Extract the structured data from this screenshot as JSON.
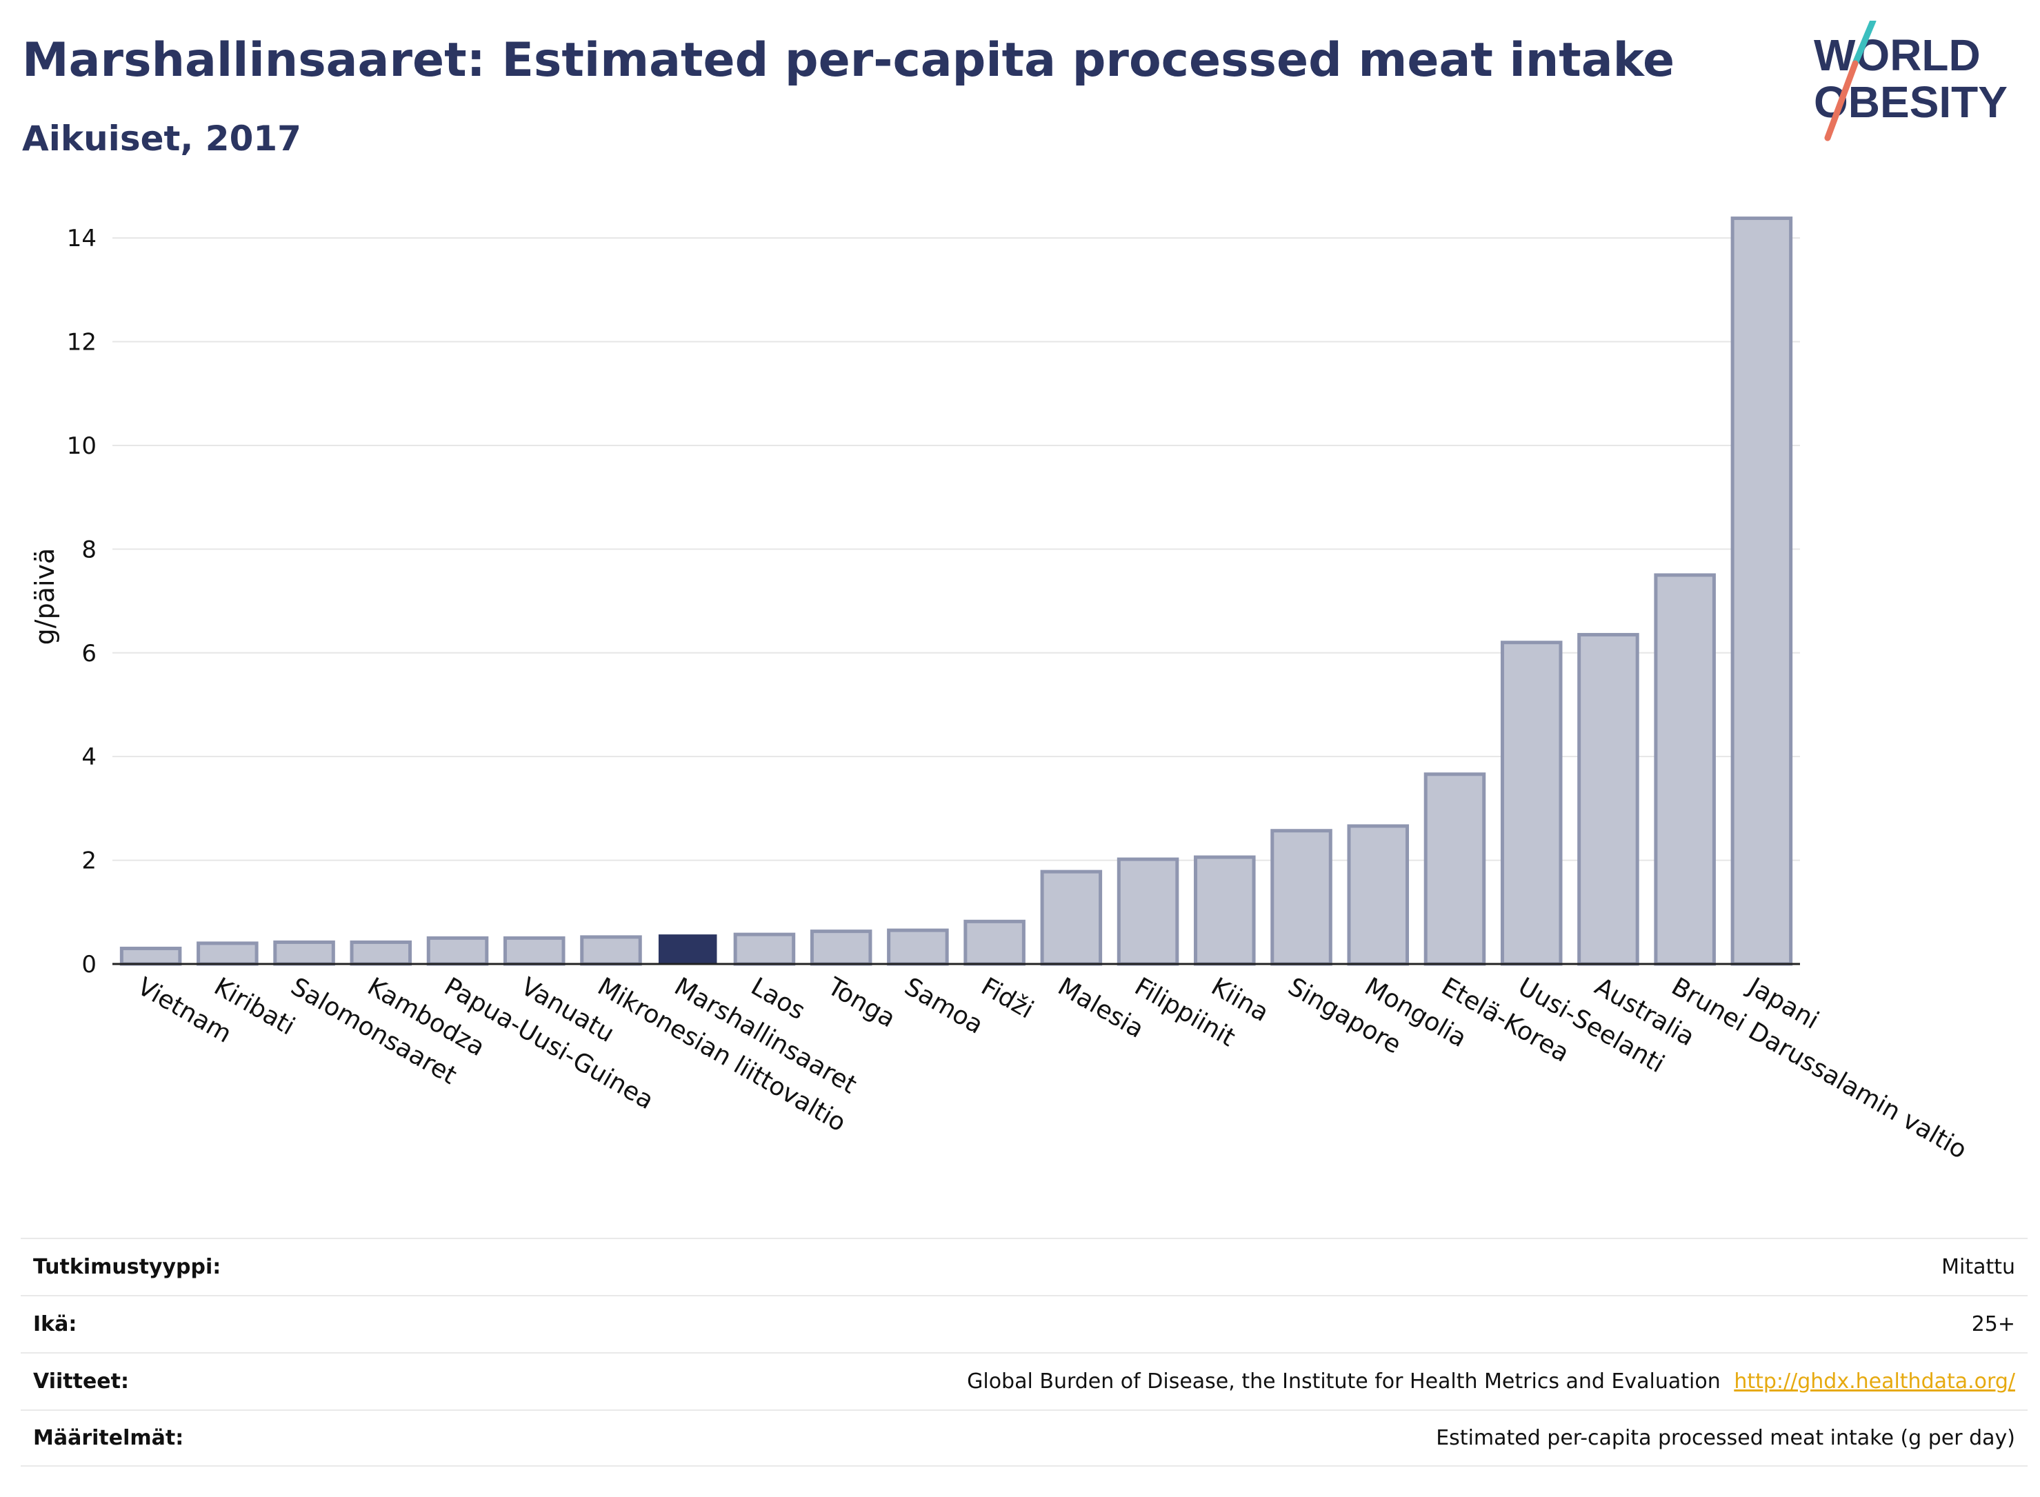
{
  "title": "Marshallinsaaret: Estimated per-capita processed meat intake",
  "subtitle": "Aikuiset, 2017",
  "logo": {
    "line1": "WORLD",
    "line2": "OBESITY",
    "accent1": "#3bbfbf",
    "accent2": "#e8735c",
    "text_color": "#2b3561"
  },
  "colors": {
    "bar": "#c0c4d2",
    "bar_stroke": "#8f96b0",
    "highlight": "#2b3561"
  },
  "chart_data": {
    "type": "bar",
    "title": "Marshallinsaaret: Estimated per-capita processed meat intake",
    "subtitle": "Aikuiset, 2017",
    "xlabel": "",
    "ylabel": "g/päivä",
    "ylim": [
      0,
      14.6
    ],
    "yticks": [
      0,
      2,
      4,
      6,
      8,
      10,
      12,
      14
    ],
    "grid": true,
    "highlight": "Marshallinsaaret",
    "categories": [
      "Vietnam",
      "Kiribati",
      "Salomonsaaret",
      "Kambodza",
      "Papua-Uusi-Guinea",
      "Vanuatu",
      "Mikronesian liittovaltio",
      "Marshallinsaaret",
      "Laos",
      "Tonga",
      "Samoa",
      "Fidži",
      "Malesia",
      "Filippiinit",
      "Kiina",
      "Singapore",
      "Mongolia",
      "Etelä-Korea",
      "Uusi-Seelanti",
      "Australia",
      "Brunei Darussalamin valtio",
      "Japani"
    ],
    "values": [
      0.3,
      0.4,
      0.42,
      0.42,
      0.5,
      0.5,
      0.52,
      0.57,
      0.57,
      0.63,
      0.65,
      0.82,
      1.78,
      2.02,
      2.06,
      2.57,
      2.66,
      3.66,
      6.2,
      6.35,
      7.5,
      14.38
    ]
  },
  "meta": [
    {
      "label": "Tutkimustyyppi:",
      "value": "Mitattu",
      "link": ""
    },
    {
      "label": "Ikä:",
      "value": "25+",
      "link": ""
    },
    {
      "label": "Viitteet:",
      "value": "Global Burden of Disease, the Institute for Health Metrics and Evaluation",
      "link": "http://ghdx.healthdata.org/"
    },
    {
      "label": "Määritelmät:",
      "value": "Estimated per-capita processed meat intake (g per day)",
      "link": ""
    }
  ]
}
